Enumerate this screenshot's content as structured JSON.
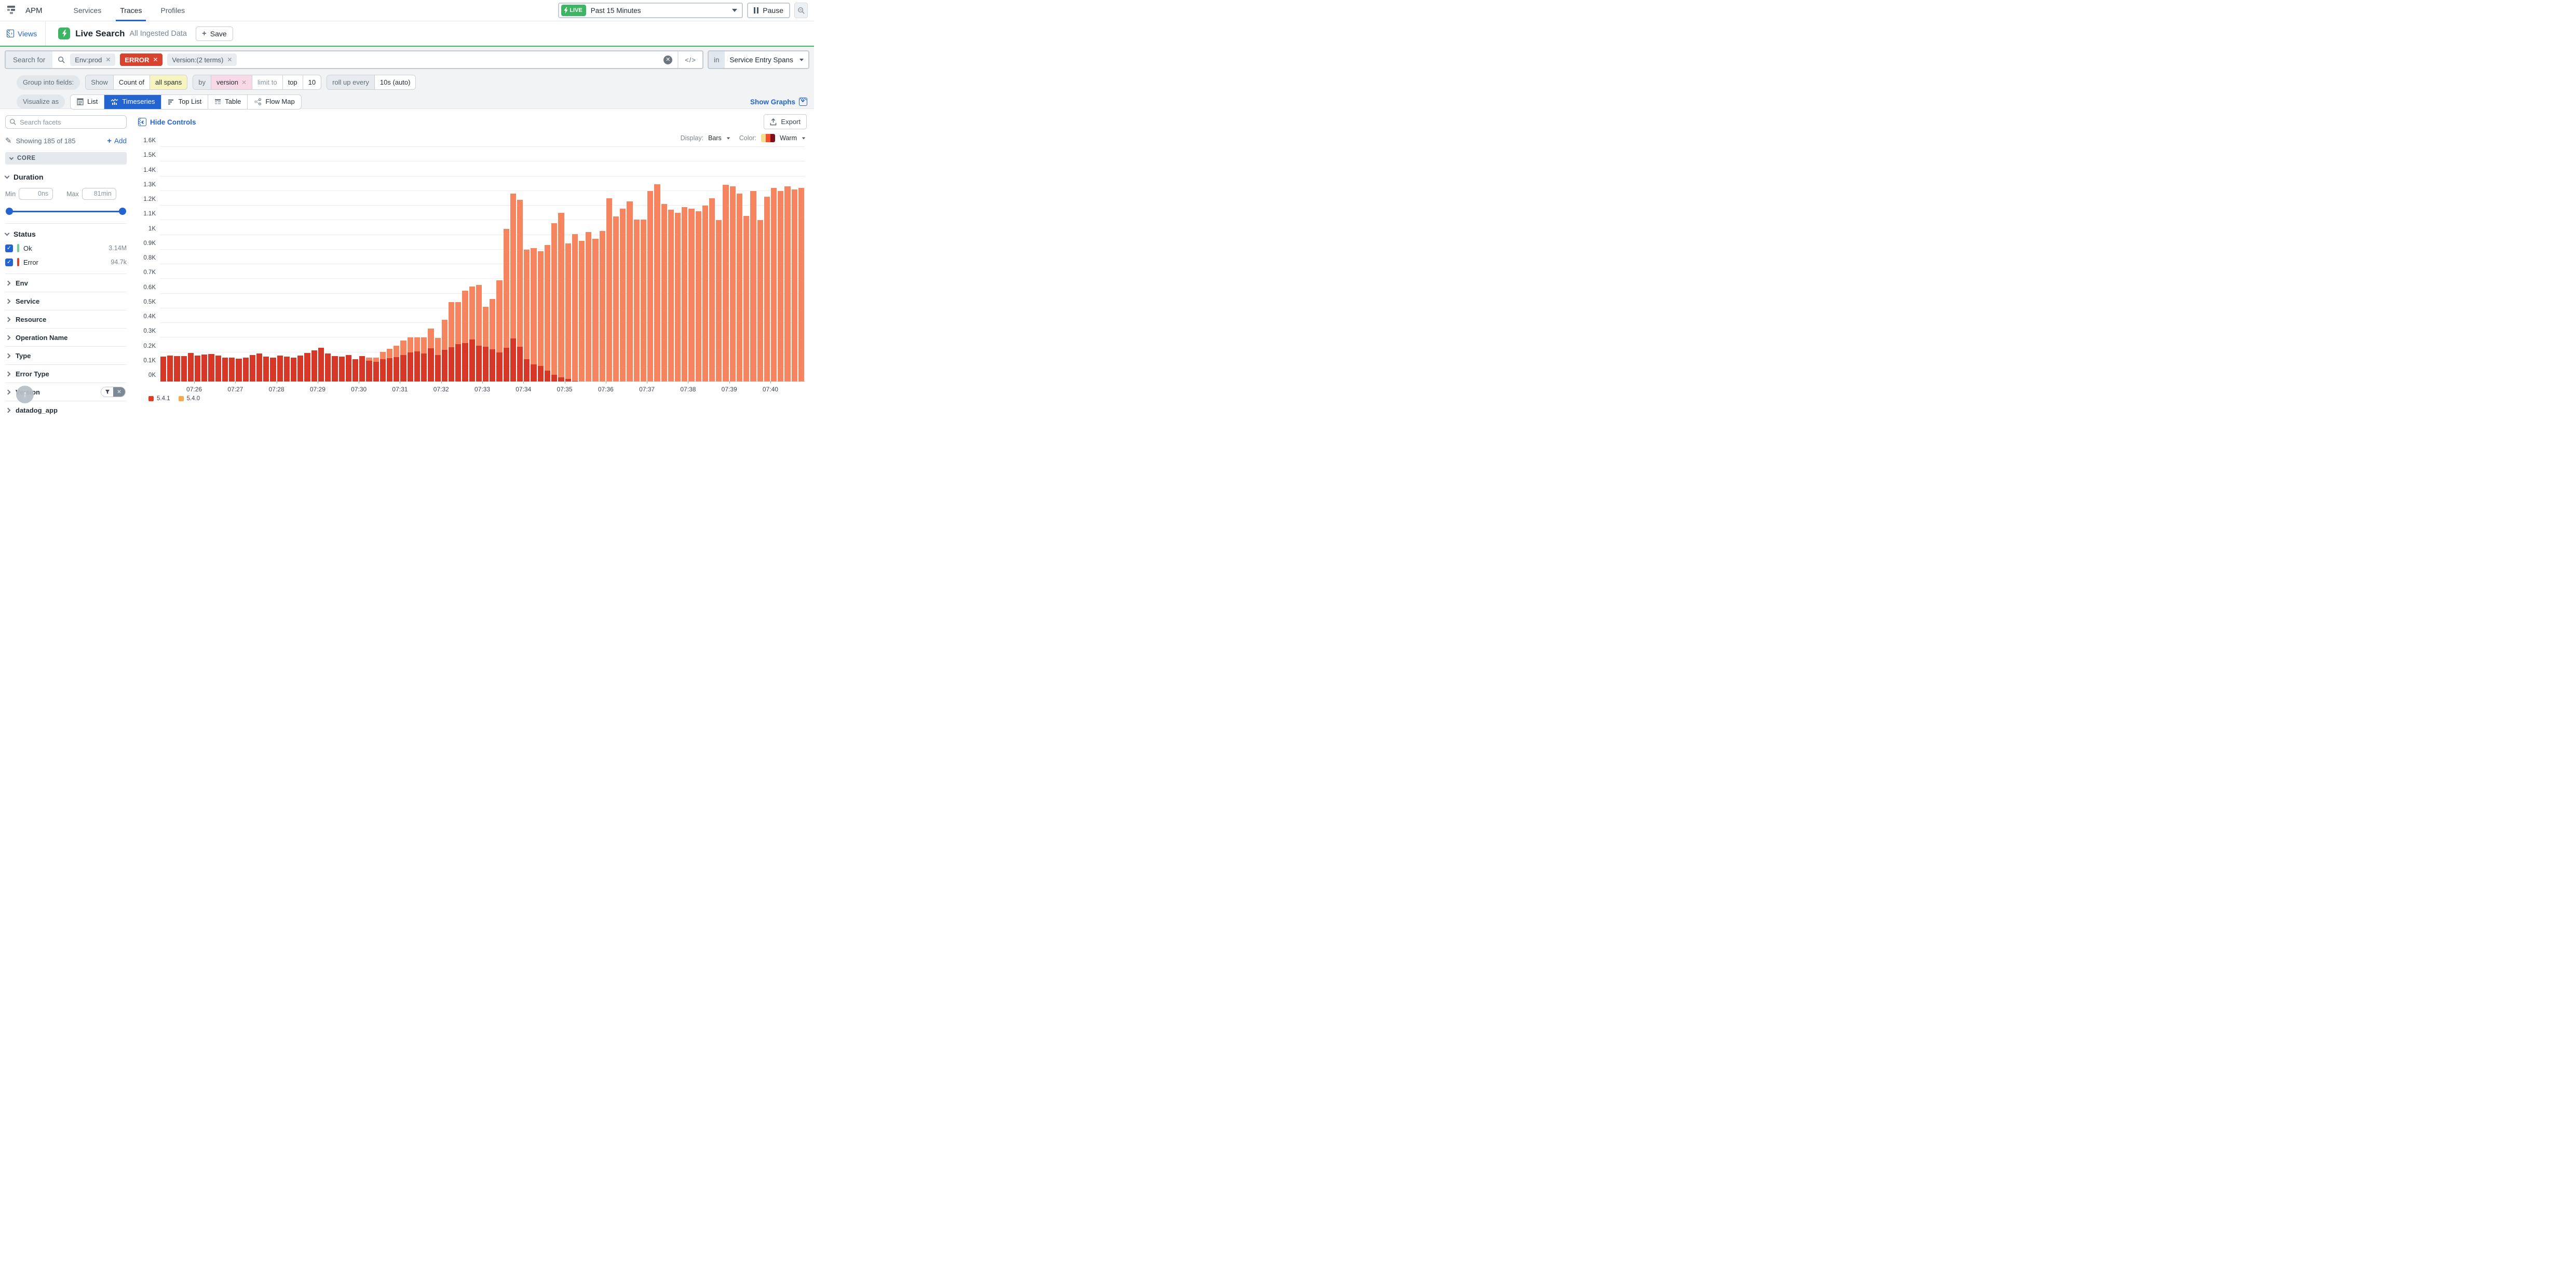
{
  "nav": {
    "brand": "APM",
    "tabs": [
      {
        "label": "Services",
        "active": false
      },
      {
        "label": "Traces",
        "active": true
      },
      {
        "label": "Profiles",
        "active": false
      }
    ],
    "live_badge": "LIVE",
    "time_range": "Past 15 Minutes",
    "pause_label": "Pause"
  },
  "header": {
    "views_label": "Views",
    "title": "Live Search",
    "subtitle": "All Ingested Data",
    "save_label": "Save"
  },
  "search": {
    "label": "Search for",
    "chips": [
      {
        "text": "Env:prod",
        "type": "default"
      },
      {
        "text": "ERROR",
        "type": "error"
      },
      {
        "text": "Version:(2 terms)",
        "type": "default"
      }
    ],
    "code_toggle": "</>",
    "in_label": "in",
    "scope": "Service Entry Spans"
  },
  "query_builder": {
    "group_label": "Group into fields:",
    "show_label": "Show",
    "count_of": "Count of",
    "count_value": "all spans",
    "by_label": "by",
    "by_value": "version",
    "limit_label": "limit to",
    "limit_mode": "top",
    "limit_value": "10",
    "rollup_label": "roll up every",
    "rollup_value": "10s (auto)"
  },
  "visualize": {
    "label": "Visualize as",
    "options": [
      {
        "label": "List",
        "icon": "list-icon",
        "active": false
      },
      {
        "label": "Timeseries",
        "icon": "timeseries-icon",
        "active": true
      },
      {
        "label": "Top List",
        "icon": "top-list-icon",
        "active": false
      },
      {
        "label": "Table",
        "icon": "table-icon",
        "active": false
      },
      {
        "label": "Flow Map",
        "icon": "flow-map-icon",
        "active": false
      }
    ],
    "show_graphs": "Show Graphs"
  },
  "sidebar": {
    "search_placeholder": "Search facets",
    "showing": "Showing 185 of 185",
    "add_label": "Add",
    "core_label": "CORE",
    "duration": {
      "title": "Duration",
      "min_label": "Min",
      "min_value": "0ns",
      "max_label": "Max",
      "max_value": "81min"
    },
    "status": {
      "title": "Status",
      "items": [
        {
          "label": "Ok",
          "count": "3.14M",
          "color": "#6fcf8e",
          "checked": true
        },
        {
          "label": "Error",
          "count": "94.7k",
          "color": "#d8432f",
          "checked": true
        }
      ]
    },
    "facets": [
      {
        "label": "Env",
        "filtered": false
      },
      {
        "label": "Service",
        "filtered": false
      },
      {
        "label": "Resource",
        "filtered": false
      },
      {
        "label": "Operation Name",
        "filtered": false
      },
      {
        "label": "Type",
        "filtered": false
      },
      {
        "label": "Error Type",
        "filtered": false
      },
      {
        "label": "Version",
        "filtered": true
      },
      {
        "label": "datadog_app",
        "filtered": false
      }
    ]
  },
  "chart_controls": {
    "hide_controls": "Hide Controls",
    "export_label": "Export",
    "display_label": "Display:",
    "display_value": "Bars",
    "color_label": "Color:",
    "color_value": "Warm",
    "palette": [
      "#f6dc8c",
      "#f4502c",
      "#7e0f1c"
    ]
  },
  "chart_data": {
    "type": "bar",
    "stacked": true,
    "title": "Count of all spans by version over time",
    "grid": "horizontal",
    "legend_position": "bottom-left",
    "ylim": [
      0,
      1600
    ],
    "y_ticks": [
      "0K",
      "0.1K",
      "0.2K",
      "0.3K",
      "0.4K",
      "0.5K",
      "0.6K",
      "0.7K",
      "0.8K",
      "0.9K",
      "1K",
      "1.1K",
      "1.2K",
      "1.3K",
      "1.4K",
      "1.5K",
      "1.6K"
    ],
    "x_minute_labels": [
      "07:26",
      "07:27",
      "07:28",
      "07:29",
      "07:30",
      "07:31",
      "07:32",
      "07:33",
      "07:34",
      "07:35",
      "07:36",
      "07:37",
      "07:38",
      "07:39",
      "07:40"
    ],
    "start_time": "07:25:10",
    "bar_interval_seconds": 10,
    "first_label_bar_index": 5,
    "series": [
      {
        "name": "5.4.0",
        "color": "#f6845f",
        "legend_color": "#f9a74d",
        "stack_order": "top",
        "values": [
          0,
          0,
          0,
          0,
          0,
          0,
          0,
          0,
          0,
          0,
          0,
          0,
          0,
          0,
          0,
          0,
          0,
          0,
          0,
          0,
          0,
          0,
          0,
          0,
          0,
          0,
          0,
          0,
          0,
          0,
          20,
          28,
          50,
          62,
          75,
          100,
          103,
          95,
          108,
          135,
          118,
          205,
          305,
          285,
          355,
          360,
          415,
          272,
          345,
          490,
          810,
          985,
          1002,
          748,
          792,
          785,
          855,
          1035,
          1122,
          922,
          1000,
          960,
          1020,
          975,
          1025,
          1250,
          1125,
          1180,
          1230,
          1105,
          1105,
          1300,
          1345,
          1210,
          1170,
          1150,
          1190,
          1180,
          1160,
          1200,
          1250,
          1100,
          1340,
          1330,
          1280,
          1130,
          1300,
          1100,
          1260,
          1320,
          1300,
          1330,
          1310,
          1320
        ]
      },
      {
        "name": "5.4.1",
        "color": "#d63727",
        "legend_color": "#e53a22",
        "stack_order": "bottom",
        "values": [
          170,
          178,
          175,
          175,
          196,
          176,
          184,
          189,
          178,
          164,
          164,
          156,
          163,
          180,
          191,
          170,
          163,
          176,
          170,
          163,
          178,
          196,
          213,
          231,
          192,
          172,
          170,
          182,
          153,
          172,
          142,
          135,
          152,
          160,
          168,
          180,
          197,
          205,
          192,
          225,
          180,
          215,
          235,
          255,
          263,
          288,
          243,
          238,
          218,
          200,
          230,
          295,
          238,
          152,
          118,
          105,
          75,
          45,
          28,
          18,
          5,
          0,
          0,
          0,
          0,
          0,
          0,
          0,
          0,
          0,
          0,
          0,
          0,
          0,
          0,
          0,
          0,
          0,
          0,
          0,
          0,
          0,
          0,
          0,
          0,
          0,
          0,
          0,
          0,
          0,
          0,
          0,
          0,
          0
        ]
      }
    ]
  }
}
